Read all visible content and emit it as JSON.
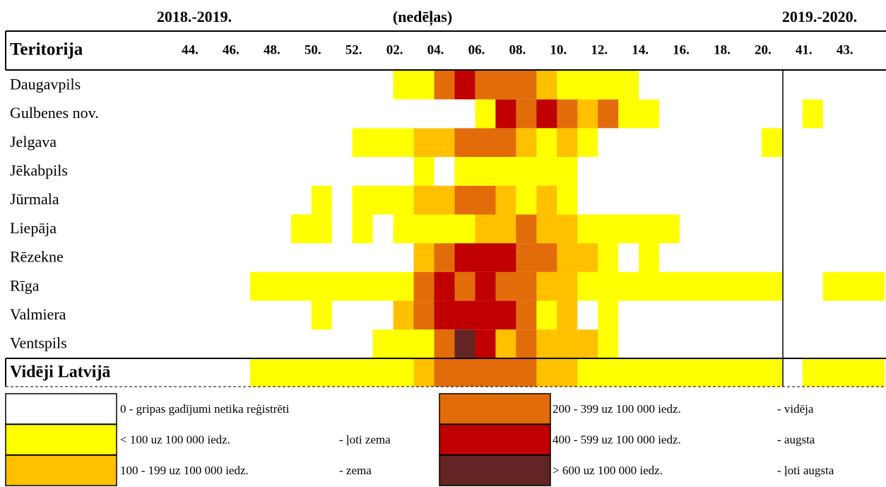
{
  "header": {
    "left": "2018.-2019.",
    "center": "(nedēļas)",
    "right": "2019.-2020.",
    "corner": "Teritorija"
  },
  "weeks": [
    "44.",
    null,
    "46.",
    null,
    "48.",
    null,
    "50.",
    null,
    "52.",
    null,
    "02.",
    null,
    "04.",
    null,
    "06.",
    null,
    "08.",
    null,
    "10.",
    null,
    "12.",
    null,
    "14.",
    null,
    "16.",
    null,
    "18.",
    null,
    "20.",
    null,
    "41.",
    null,
    "43.",
    null
  ],
  "rows": [
    {
      "name": "Daugavpils",
      "levels": [
        0,
        0,
        0,
        0,
        0,
        0,
        0,
        0,
        0,
        0,
        1,
        1,
        3,
        4,
        3,
        3,
        3,
        2,
        1,
        1,
        1,
        1,
        0,
        0,
        0,
        0,
        0,
        0,
        0,
        0,
        0,
        0,
        0,
        0
      ]
    },
    {
      "name": "Gulbenes nov.",
      "levels": [
        0,
        0,
        0,
        0,
        0,
        0,
        0,
        0,
        0,
        0,
        0,
        0,
        0,
        0,
        1,
        4,
        3,
        4,
        3,
        2,
        3,
        1,
        1,
        0,
        0,
        0,
        0,
        0,
        0,
        0,
        1,
        0,
        0,
        0
      ]
    },
    {
      "name": "Jelgava",
      "levels": [
        0,
        0,
        0,
        0,
        0,
        0,
        0,
        0,
        1,
        1,
        1,
        2,
        2,
        3,
        3,
        3,
        2,
        1,
        2,
        1,
        0,
        0,
        0,
        0,
        0,
        0,
        0,
        0,
        1,
        0,
        0,
        0,
        0,
        0
      ]
    },
    {
      "name": "Jēkabpils",
      "levels": [
        0,
        0,
        0,
        0,
        0,
        0,
        0,
        0,
        0,
        0,
        0,
        1,
        0,
        1,
        1,
        1,
        1,
        1,
        1,
        0,
        0,
        0,
        0,
        0,
        0,
        0,
        0,
        0,
        0,
        0,
        0,
        0,
        0,
        0
      ]
    },
    {
      "name": "Jūrmala",
      "levels": [
        0,
        0,
        0,
        0,
        0,
        0,
        1,
        0,
        1,
        1,
        1,
        2,
        2,
        3,
        3,
        2,
        1,
        2,
        1,
        0,
        0,
        0,
        0,
        0,
        0,
        0,
        0,
        0,
        0,
        0,
        0,
        0,
        0,
        0
      ]
    },
    {
      "name": "Liepāja",
      "levels": [
        0,
        0,
        0,
        0,
        0,
        1,
        1,
        0,
        1,
        0,
        1,
        1,
        1,
        1,
        2,
        2,
        3,
        2,
        2,
        1,
        1,
        1,
        1,
        1,
        0,
        0,
        0,
        0,
        0,
        0,
        0,
        0,
        0,
        0
      ]
    },
    {
      "name": "Rēzekne",
      "levels": [
        0,
        0,
        0,
        0,
        0,
        0,
        0,
        0,
        0,
        0,
        0,
        2,
        3,
        4,
        4,
        4,
        3,
        3,
        2,
        2,
        1,
        0,
        1,
        0,
        0,
        0,
        0,
        0,
        0,
        0,
        0,
        0,
        0,
        0
      ]
    },
    {
      "name": "Rīga",
      "levels": [
        0,
        0,
        0,
        1,
        1,
        1,
        1,
        1,
        1,
        1,
        1,
        3,
        4,
        3,
        4,
        3,
        3,
        2,
        2,
        1,
        1,
        1,
        1,
        1,
        1,
        1,
        1,
        1,
        1,
        0,
        0,
        1,
        1,
        1
      ]
    },
    {
      "name": "Valmiera",
      "levels": [
        0,
        0,
        0,
        0,
        0,
        0,
        1,
        0,
        0,
        0,
        2,
        3,
        4,
        4,
        4,
        4,
        3,
        1,
        2,
        0,
        1,
        0,
        0,
        0,
        0,
        0,
        0,
        0,
        0,
        0,
        0,
        0,
        0,
        0
      ]
    },
    {
      "name": "Ventspils",
      "levels": [
        0,
        0,
        0,
        0,
        0,
        0,
        0,
        0,
        0,
        1,
        1,
        1,
        3,
        5,
        4,
        2,
        3,
        2,
        2,
        2,
        1,
        0,
        0,
        0,
        0,
        0,
        0,
        0,
        0,
        0,
        0,
        0,
        0,
        0
      ]
    }
  ],
  "average": {
    "name": "Vidēji Latvijā",
    "levels": [
      0,
      0,
      0,
      1,
      1,
      1,
      1,
      1,
      1,
      1,
      1,
      2,
      3,
      3,
      3,
      3,
      3,
      2,
      2,
      1,
      1,
      1,
      1,
      1,
      1,
      1,
      1,
      1,
      1,
      0,
      1,
      1,
      1,
      1
    ]
  },
  "legend": [
    {
      "color": "#ffffff",
      "text": "0 - gripas gadījumi netika reģistrēti"
    },
    {
      "color": "#ffff00",
      "text": "< 100 uz 100 000 iedz.",
      "desc": "- ļoti zema"
    },
    {
      "color": "#ffc000",
      "text": "100 - 199 uz 100 000 iedz.",
      "desc": "- zema"
    },
    {
      "color": "#e36c0a",
      "text": "200 - 399 uz 100 000 iedz.",
      "desc": "- vidēja"
    },
    {
      "color": "#c00000",
      "text": "400 - 599 uz 100 000 iedz.",
      "desc": "- augsta"
    },
    {
      "color": "#632523",
      "text": "> 600 uz 100 000 iedz.",
      "desc": "- ļoti augsta"
    }
  ]
}
